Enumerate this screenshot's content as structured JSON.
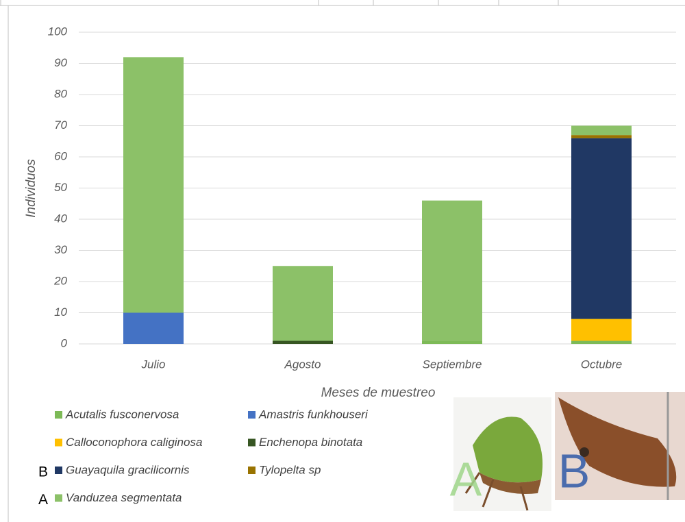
{
  "chart_data": {
    "type": "stacked_bar",
    "y_label": "Individuos",
    "x_label": "Meses de muestreo",
    "categories": [
      "Julio",
      "Agosto",
      "Septiembre",
      "Octubre"
    ],
    "series": [
      {
        "name": "Acutalis fusconervosa",
        "color": "#7dba57",
        "values": [
          0,
          0,
          1,
          1
        ]
      },
      {
        "name": "Amastris funkhouseri",
        "color": "#4472c4",
        "values": [
          10,
          0,
          0,
          0
        ]
      },
      {
        "name": "Calloconophora caliginosa",
        "color": "#ffc000",
        "values": [
          0,
          0,
          0,
          7
        ]
      },
      {
        "name": "Enchenopa binotata",
        "color": "#375623",
        "values": [
          0,
          1,
          0,
          0
        ]
      },
      {
        "name": "Guayaquila gracilicornis",
        "color": "#203864",
        "values": [
          0,
          0,
          0,
          58
        ]
      },
      {
        "name": "Tylopelta sp",
        "color": "#997300",
        "values": [
          0,
          0,
          0,
          1
        ]
      },
      {
        "name": "Vanduzea segmentata",
        "color": "#8cc168",
        "values": [
          82,
          24,
          45,
          3
        ]
      }
    ],
    "ylim": [
      0,
      100
    ],
    "yticks": [
      0,
      10,
      20,
      30,
      40,
      50,
      60,
      70,
      80,
      90,
      100
    ],
    "grid": true,
    "legend_markers": {
      "Guayaquila gracilicornis": "B",
      "Vanduzea segmentata": "A"
    },
    "image_labels": [
      "A",
      "B"
    ]
  }
}
